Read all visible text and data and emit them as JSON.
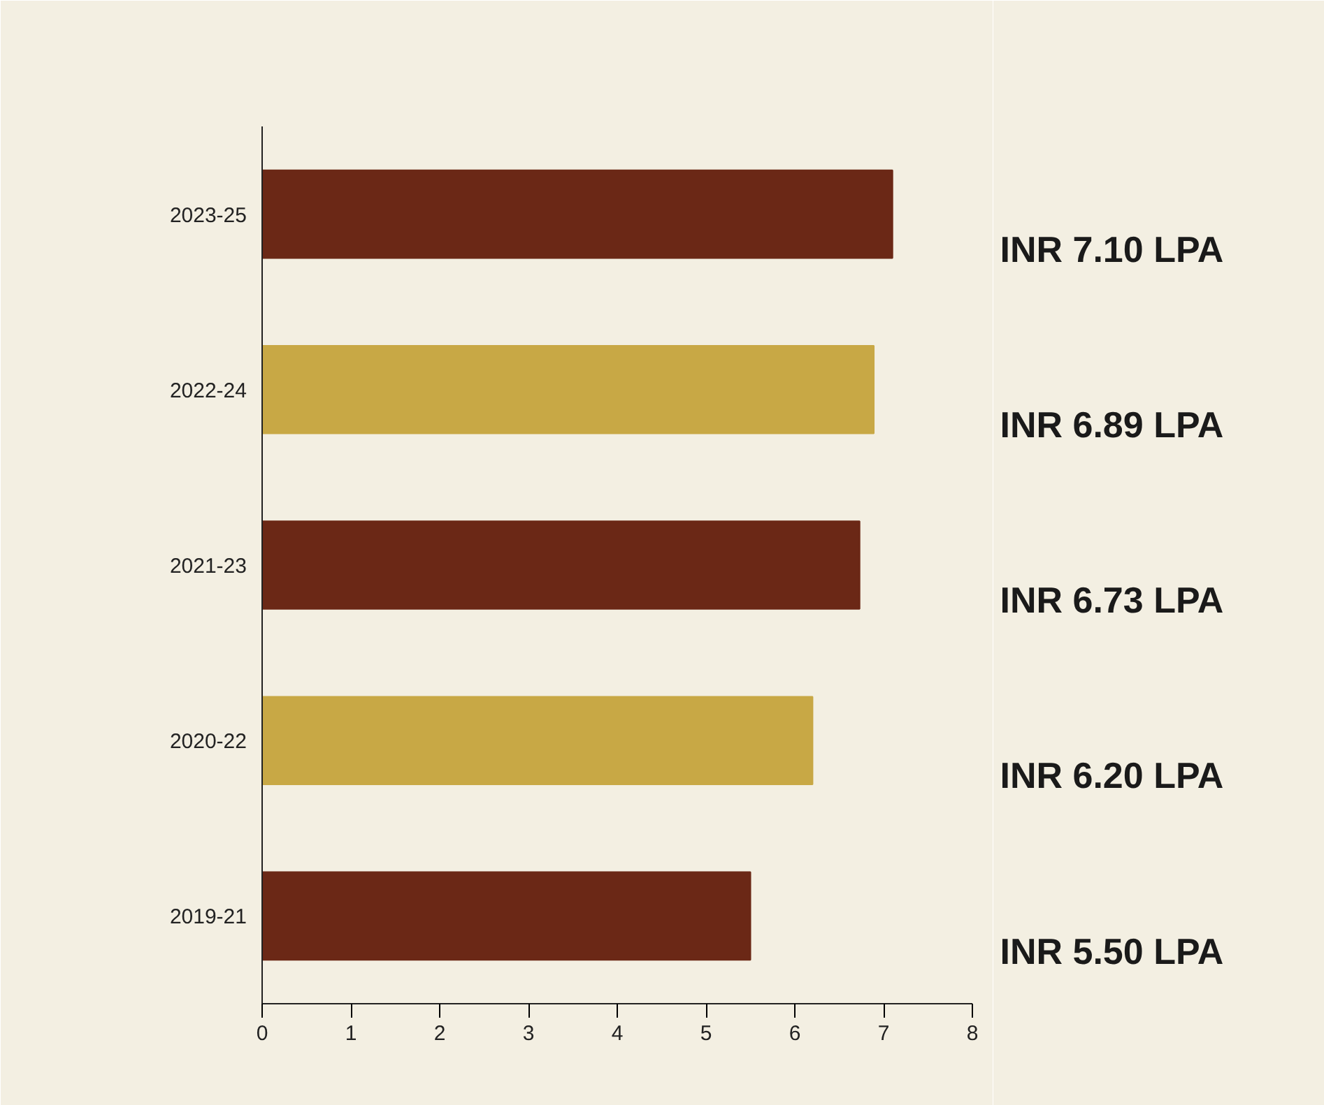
{
  "chart_data": {
    "type": "bar",
    "orientation": "horizontal",
    "categories": [
      "2023-25",
      "2022-24",
      "2021-23",
      "2020-22",
      "2019-21"
    ],
    "values": [
      7.1,
      6.89,
      6.73,
      6.2,
      5.5
    ],
    "colors": [
      "#6b2816",
      "#c8a845",
      "#6b2816",
      "#c8a845",
      "#6b2816"
    ],
    "value_labels": [
      "INR 7.10 LPA",
      "INR 6.89 LPA",
      "INR 6.73 LPA",
      "INR 6.20 LPA",
      "INR 5.50 LPA"
    ],
    "xlim": [
      0,
      8
    ],
    "xticks": [
      0,
      1,
      2,
      3,
      4,
      5,
      6,
      7,
      8
    ],
    "grid": false
  }
}
